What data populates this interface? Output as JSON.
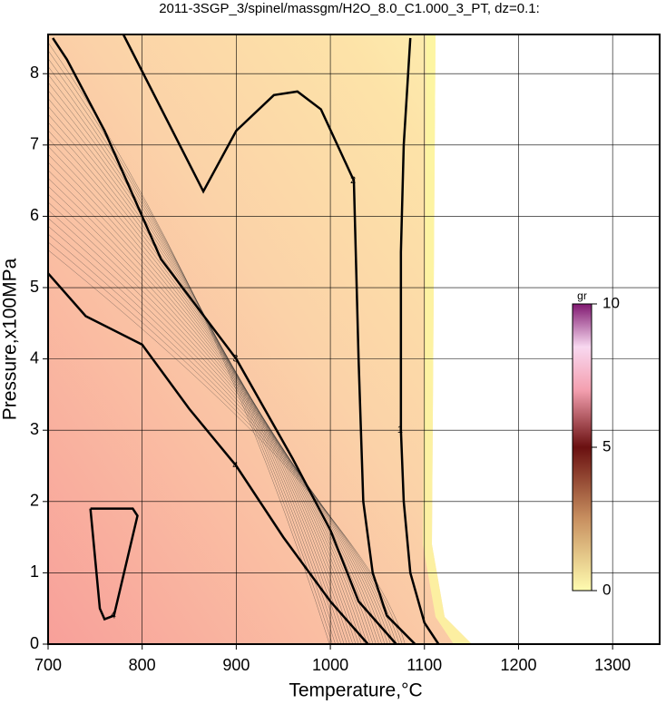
{
  "chart_data": {
    "type": "contour",
    "title": "2011-3SGP_3/spinel/massgm/H2O_8.0_C1.000_3_PT, dz=0.1:",
    "x_label": "Temperature,°C",
    "y_label": "Pressure,x100MPa",
    "xlim": [
      700,
      1350
    ],
    "ylim": [
      0,
      8.55
    ],
    "xticks": [
      700,
      800,
      900,
      1000,
      1100,
      1200,
      1300
    ],
    "yticks": [
      0,
      1,
      2,
      3,
      4,
      5,
      6,
      7,
      8
    ],
    "grid": true,
    "contours": [
      {
        "level": 1,
        "x": [
          1085,
          1078,
          1075,
          1075,
          1075,
          1078,
          1085,
          1100,
          1115
        ],
        "y": [
          8.5,
          7,
          5.5,
          4,
          3,
          2,
          1,
          0.3,
          0
        ]
      },
      {
        "level": 2,
        "x": [
          780,
          865,
          900,
          940,
          965,
          990,
          1025,
          1030,
          1035,
          1045,
          1060,
          1090
        ],
        "y": [
          8.55,
          6.35,
          7.2,
          7.7,
          7.75,
          7.5,
          6.5,
          4,
          2,
          1,
          0.4,
          0
        ]
      },
      {
        "level": 3,
        "x": [
          705,
          720,
          760,
          820,
          900,
          960,
          1000,
          1030,
          1070
        ],
        "y": [
          8.5,
          8.2,
          7.2,
          5.4,
          4.0,
          2.6,
          1.6,
          0.6,
          0
        ]
      },
      {
        "level": 4,
        "x": [
          700,
          740,
          800,
          850,
          900,
          950,
          1000,
          1040
        ],
        "y": [
          5.2,
          4.6,
          4.2,
          3.3,
          2.5,
          1.5,
          0.6,
          0
        ]
      },
      {
        "level": 4,
        "x": [
          745,
          790,
          795,
          770,
          760,
          755,
          745
        ],
        "y": [
          1.9,
          1.9,
          1.8,
          0.4,
          0.35,
          0.5,
          1.9
        ]
      }
    ],
    "colorbar": {
      "label": "gr",
      "lim": [
        0,
        10
      ],
      "ticks": [
        0,
        5,
        10
      ]
    }
  }
}
